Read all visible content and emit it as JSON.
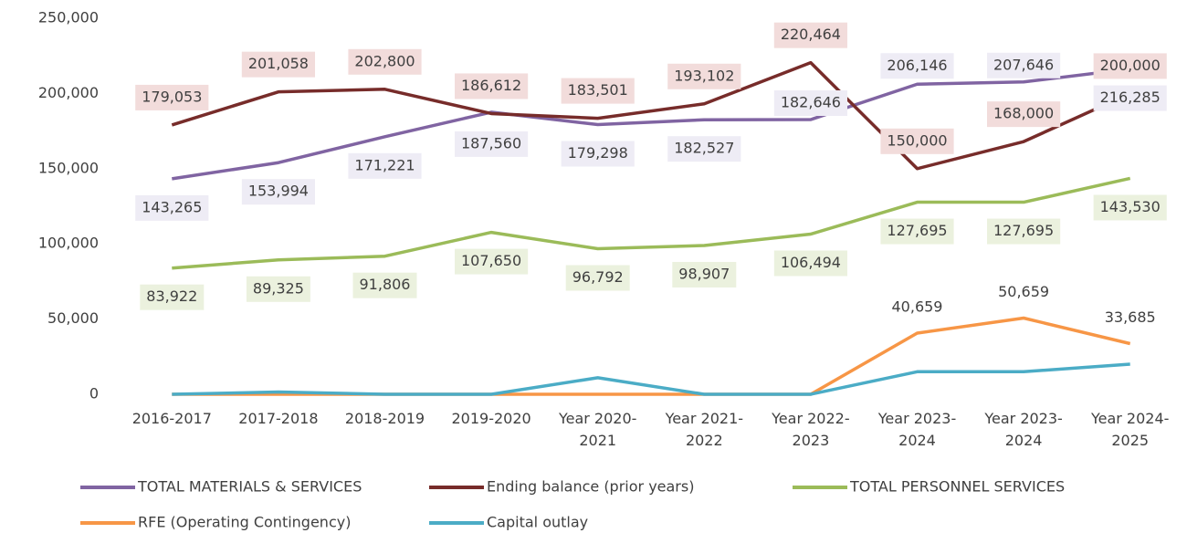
{
  "chart_data": {
    "type": "line",
    "categories": [
      "2016-2017",
      "2017-2018",
      "2018-2019",
      "2019-2020",
      "Year 2020-2021",
      "Year 2021-2022",
      "Year 2022-2023",
      "Year 2023-2024",
      "Year 2023-2024",
      "Year 2024-2025"
    ],
    "ylim": [
      0,
      250000
    ],
    "yticks": [
      0,
      {
        "value": 50000,
        "label": "50,000"
      },
      {
        "value": 100000,
        "label": "100,000"
      },
      {
        "value": 150000,
        "label": "150,000"
      },
      {
        "value": 200000,
        "label": "200,000"
      },
      {
        "value": 250000,
        "label": "250,000"
      }
    ],
    "grid": false,
    "legend": "bottom",
    "series": [
      {
        "name": "TOTAL MATERIALS & SERVICES",
        "color": "#8064a2",
        "values": [
          143265,
          153994,
          171221,
          187560,
          179298,
          182527,
          182646,
          206146,
          207646,
          216285
        ],
        "value_labels": [
          "143,265",
          "153,994",
          "171,221",
          "187,560",
          "179,298",
          "182,527",
          "182,646",
          "206,146",
          "207,646",
          "216,285"
        ]
      },
      {
        "name": "Ending balance (prior years)",
        "color": "#772c2a",
        "values": [
          179053,
          201058,
          202800,
          186612,
          183501,
          193102,
          220464,
          150000,
          168000,
          200000
        ],
        "value_labels": [
          "179,053",
          "201,058",
          "202,800",
          "186,612",
          "183,501",
          "193,102",
          "220,464",
          "150,000",
          "168,000",
          "200,000"
        ]
      },
      {
        "name": "TOTAL PERSONNEL SERVICES",
        "color": "#9bbb59",
        "values": [
          83922,
          89325,
          91806,
          107650,
          96792,
          98907,
          106494,
          127695,
          127695,
          143530
        ],
        "value_labels": [
          "83,922",
          "89,325",
          "91,806",
          "107,650",
          "96,792",
          "98,907",
          "106,494",
          "127,695",
          "127,695",
          "143,530"
        ]
      },
      {
        "name": "RFE (Operating Contingency)",
        "color": "#f79646",
        "values": [
          0,
          0,
          0,
          0,
          0,
          0,
          0,
          40659,
          50659,
          33685
        ],
        "value_labels": [
          null,
          null,
          null,
          null,
          null,
          null,
          null,
          "40,659",
          "50,659",
          "33,685"
        ]
      },
      {
        "name": "Capital outlay",
        "color": "#4bacc6",
        "values": [
          0,
          1500,
          0,
          0,
          11000,
          0,
          0,
          15000,
          15000,
          20000
        ]
      }
    ]
  }
}
